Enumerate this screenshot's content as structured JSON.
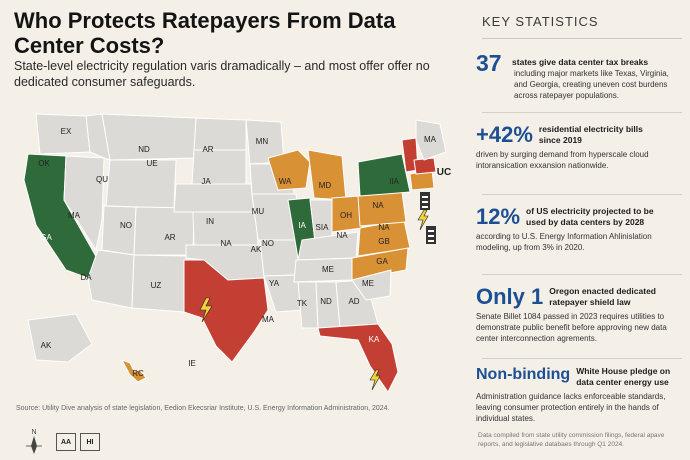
{
  "title": "Who Protects Ratepayers From Data Center Costs?",
  "subtitle": "State-level electricity regulation varis dramadically – and most offer offer no dedicated consumer safeguards.",
  "colors": {
    "background": "#f4efe7",
    "gray": "#dcdad6",
    "green": "#2f6b3a",
    "orange": "#d99136",
    "red": "#c43f33",
    "accent": "#1d4f93"
  },
  "map": {
    "labels": [
      "EX",
      "ND",
      "AR",
      "MN",
      "MA",
      "OK",
      "QU",
      "UE",
      "JA",
      "WA",
      "MD",
      "IIA",
      "UC",
      "MA",
      "NO",
      "IN",
      "MU",
      "NA",
      "GA",
      "AR",
      "IA",
      "SIA",
      "OH",
      "NA",
      "NA",
      "NO",
      "NA",
      "GB",
      "GA",
      "DA",
      "UZ",
      "YA",
      "AK",
      "ME",
      "ME",
      "TK",
      "ND",
      "AD",
      "MA",
      "KA",
      "AK",
      "RC",
      "IE"
    ]
  },
  "source": "Source: Utility Dive analysis of state legislation, Eedion Ekecsriar Institute, U.S. Energy Information Administration, 2024.",
  "compass_label": "N",
  "inset_buttons": [
    "AA",
    "HI"
  ],
  "panel": {
    "heading": "KEY STATISTICS",
    "stats": [
      {
        "big": "37",
        "label": "states give data center tax breaks",
        "desc": "including major markets like Texas, Virginia, and Georgia, creating uneven cost burdens across ratepayer populations."
      },
      {
        "big": "+42%",
        "label": "residential electricity bills since 2019",
        "desc": "driven by surging demand from hyperscale cloud intoransication exxansion nationwide."
      },
      {
        "big": "12%",
        "label": "of US electricity projected to be used by data centers by 2028",
        "desc": "according to U.S. Energy Information Ahlinislation modeling, up from 3% in 2020."
      },
      {
        "big": "Only 1",
        "label": "Oregon enacted dedicated ratepayer shield law",
        "desc": "Senate Billet 1084 passed in 2023 requires utilities to demonstrate public benefit before approving new data center interconnection agrements."
      },
      {
        "big": "Non-binding",
        "label": "White House pledge on data center energy use",
        "desc": "Administration guidance lacks enforceable standards, leaving consumer protection entirely in the hands of individual states."
      }
    ],
    "footer": "Data compiled from state utility commission filings, federal apave reports, and legislative databaes through Q1 2024."
  }
}
